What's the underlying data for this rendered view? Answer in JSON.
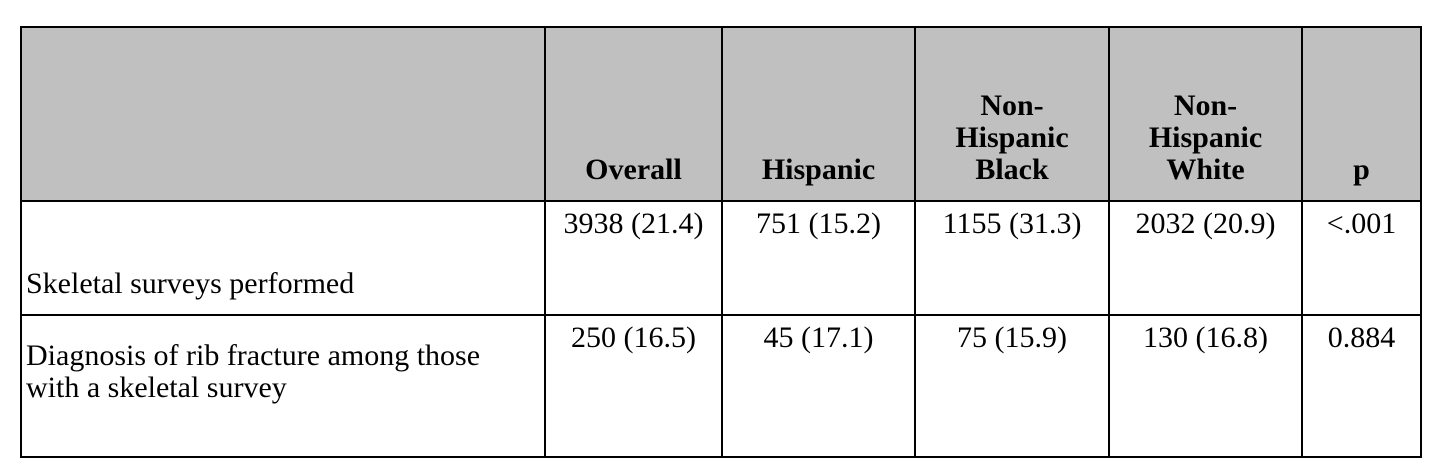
{
  "table": {
    "columns": [
      "Overall",
      "Hispanic",
      "Non-\nHispanic\nBlack",
      "Non-\nHispanic\nWhite",
      "p"
    ],
    "rows": [
      [
        "Skeletal surveys performed",
        "3938 (21.4)",
        "751 (15.2)",
        "1155 (31.3)",
        "2032 (20.9)",
        "<.001"
      ],
      [
        "Diagnosis of rib fracture among those with a skeletal survey",
        "250 (16.5)",
        "45 (17.1)",
        "75 (15.9)",
        "130 (16.8)",
        "0.884"
      ]
    ]
  }
}
